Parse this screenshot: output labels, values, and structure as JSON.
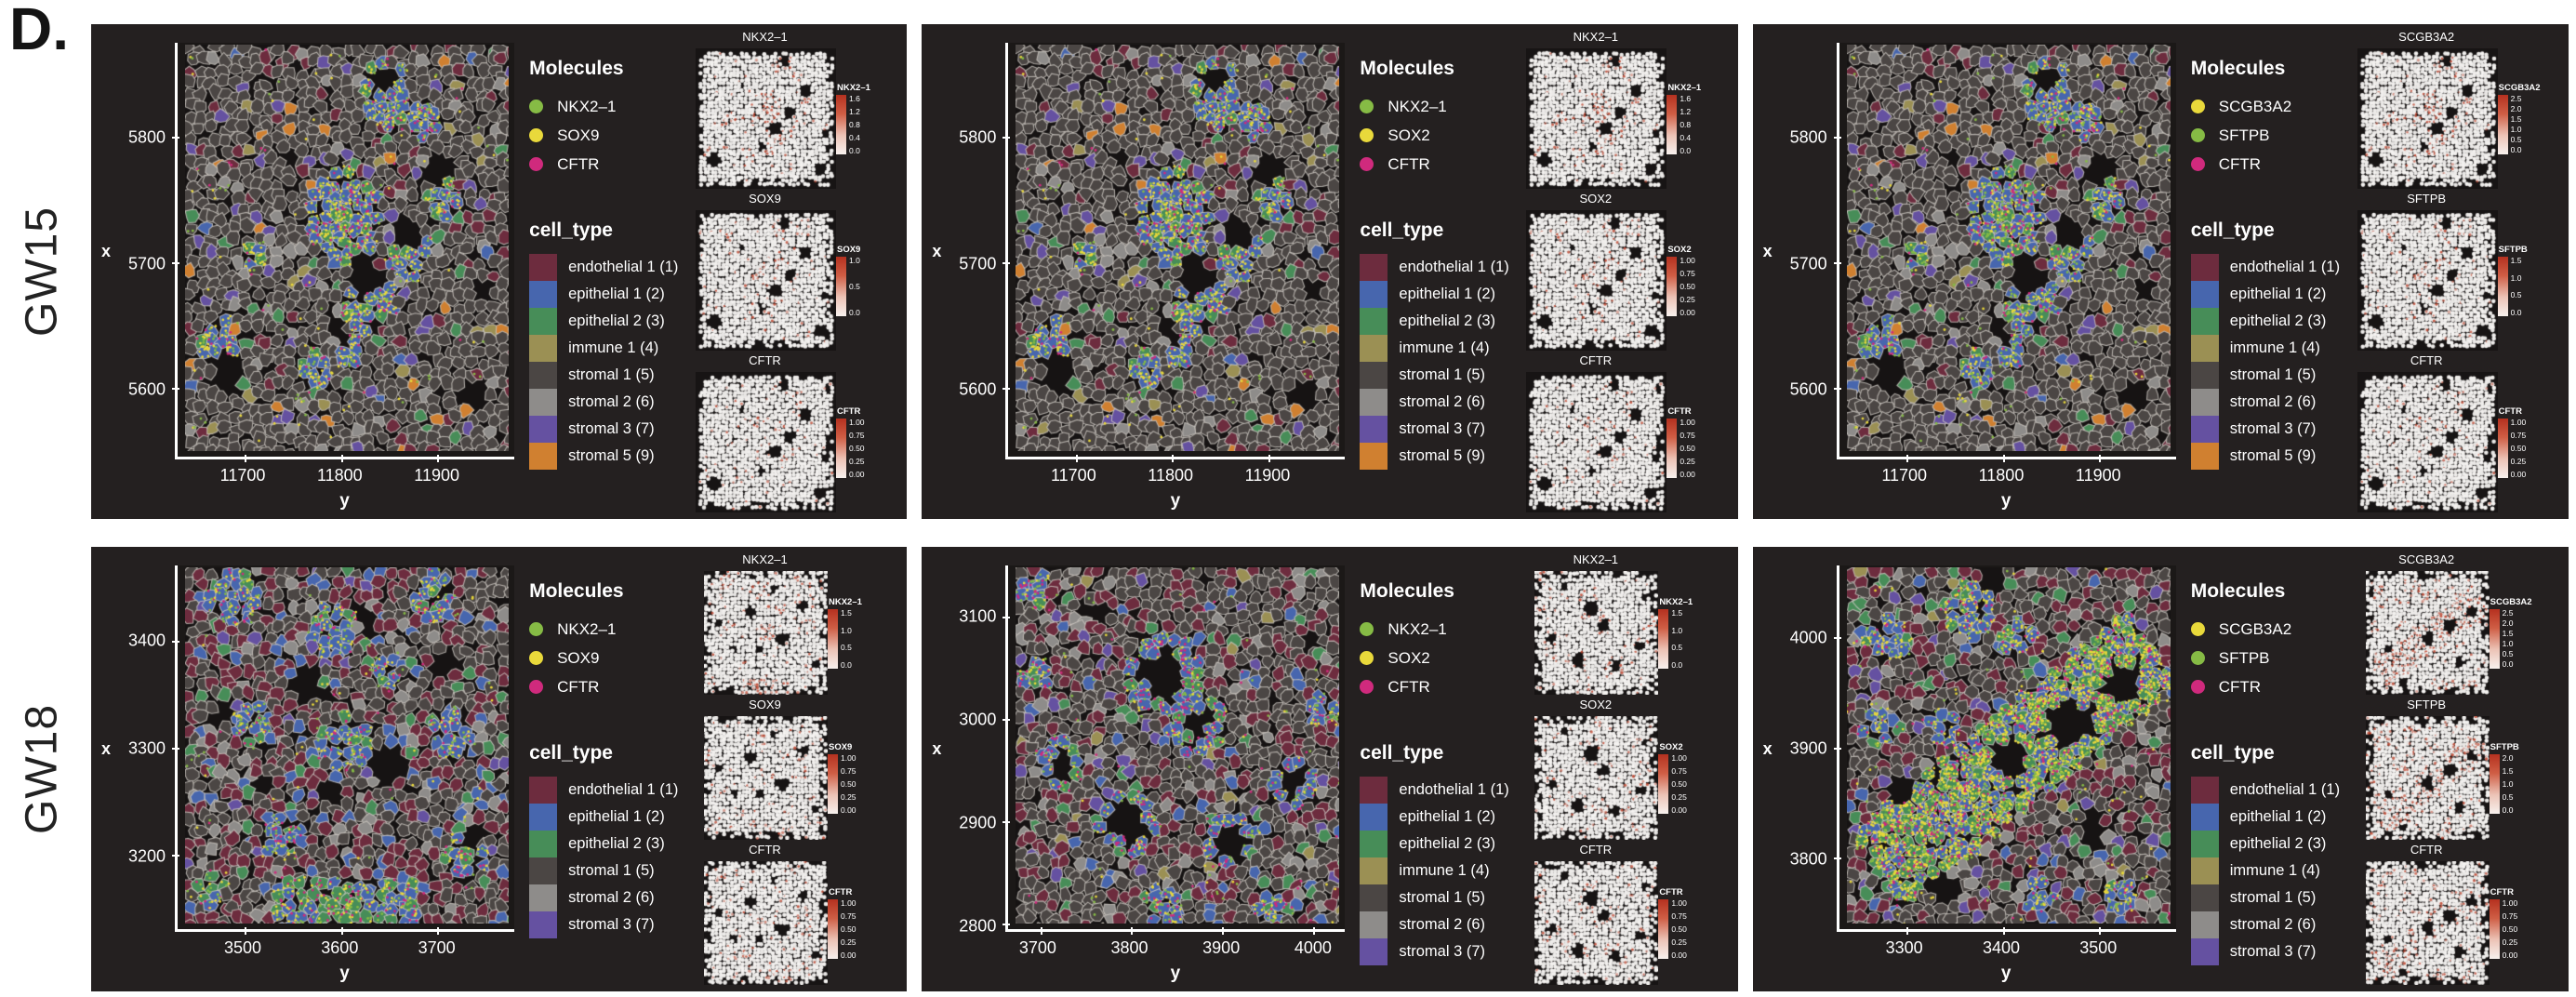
{
  "figure_label": "D.",
  "rows": [
    {
      "label": "GW15",
      "panels": [
        0,
        1,
        2
      ]
    },
    {
      "label": "GW18",
      "panels": [
        3,
        4,
        5
      ]
    }
  ],
  "colors": {
    "panel_background": "#242020",
    "axis": "#ffffff",
    "expression_low": "#f7f1ee",
    "expression_high": "#b5311f"
  },
  "chart_data": [
    {
      "type": "scatter",
      "row": "GW15",
      "xlabel": "y",
      "ylabel": "x",
      "xlim": [
        11630,
        11980
      ],
      "xticks": [
        11700,
        11800,
        11900
      ],
      "ylim": [
        5545,
        5875
      ],
      "yticks": [
        5800,
        5700,
        5600
      ],
      "legend_molecules_title": "Molecules",
      "molecules": [
        {
          "name": "NKX2–1",
          "color": "#86bb45"
        },
        {
          "name": "SOX9",
          "color": "#e9d93b"
        },
        {
          "name": "CFTR",
          "color": "#d02a7d"
        }
      ],
      "legend_cell_type_title": "cell_type",
      "cell_types": [
        {
          "name": "endothelial 1 (1)",
          "color": "#6d2c3e"
        },
        {
          "name": "epithelial 1 (2)",
          "color": "#4766ae"
        },
        {
          "name": "epithelial 2 (3)",
          "color": "#478d58"
        },
        {
          "name": "immune 1 (4)",
          "color": "#9b9054"
        },
        {
          "name": "stromal 1 (5)",
          "color": "#4b4644"
        },
        {
          "name": "stromal 2 (6)",
          "color": "#8e8c8a"
        },
        {
          "name": "stromal 3 (7)",
          "color": "#6551a1"
        },
        {
          "name": "stromal 5 (9)",
          "color": "#d08030"
        }
      ],
      "insets": [
        {
          "title": "NKX2–1",
          "colorbar_title": "NKX2–1",
          "colorbar_ticks": [
            "1.6",
            "1.2",
            "0.8",
            "0.4",
            "0.0"
          ]
        },
        {
          "title": "SOX9",
          "colorbar_title": "SOX9",
          "colorbar_ticks": [
            "1.0",
            "0.5",
            "0.0"
          ]
        },
        {
          "title": "CFTR",
          "colorbar_title": "CFTR",
          "colorbar_ticks": [
            "1.00",
            "0.75",
            "0.50",
            "0.25",
            "0.00"
          ]
        }
      ]
    },
    {
      "type": "scatter",
      "row": "GW15",
      "xlabel": "y",
      "ylabel": "x",
      "xlim": [
        11630,
        11980
      ],
      "xticks": [
        11700,
        11800,
        11900
      ],
      "ylim": [
        5545,
        5875
      ],
      "yticks": [
        5800,
        5700,
        5600
      ],
      "legend_molecules_title": "Molecules",
      "molecules": [
        {
          "name": "NKX2–1",
          "color": "#86bb45"
        },
        {
          "name": "SOX2",
          "color": "#e9d93b"
        },
        {
          "name": "CFTR",
          "color": "#d02a7d"
        }
      ],
      "legend_cell_type_title": "cell_type",
      "cell_types": [
        {
          "name": "endothelial 1 (1)",
          "color": "#6d2c3e"
        },
        {
          "name": "epithelial 1 (2)",
          "color": "#4766ae"
        },
        {
          "name": "epithelial 2 (3)",
          "color": "#478d58"
        },
        {
          "name": "immune 1 (4)",
          "color": "#9b9054"
        },
        {
          "name": "stromal 1 (5)",
          "color": "#4b4644"
        },
        {
          "name": "stromal 2 (6)",
          "color": "#8e8c8a"
        },
        {
          "name": "stromal 3 (7)",
          "color": "#6551a1"
        },
        {
          "name": "stromal 5 (9)",
          "color": "#d08030"
        }
      ],
      "insets": [
        {
          "title": "NKX2–1",
          "colorbar_title": "NKX2–1",
          "colorbar_ticks": [
            "1.6",
            "1.2",
            "0.8",
            "0.4",
            "0.0"
          ]
        },
        {
          "title": "SOX2",
          "colorbar_title": "SOX2",
          "colorbar_ticks": [
            "1.00",
            "0.75",
            "0.50",
            "0.25",
            "0.00"
          ]
        },
        {
          "title": "CFTR",
          "colorbar_title": "CFTR",
          "colorbar_ticks": [
            "1.00",
            "0.75",
            "0.50",
            "0.25",
            "0.00"
          ]
        }
      ]
    },
    {
      "type": "scatter",
      "row": "GW15",
      "xlabel": "y",
      "ylabel": "x",
      "xlim": [
        11630,
        11980
      ],
      "xticks": [
        11700,
        11800,
        11900
      ],
      "ylim": [
        5545,
        5875
      ],
      "yticks": [
        5800,
        5700,
        5600
      ],
      "legend_molecules_title": "Molecules",
      "molecules": [
        {
          "name": "SCGB3A2",
          "color": "#e9d93b"
        },
        {
          "name": "SFTPB",
          "color": "#86bb45"
        },
        {
          "name": "CFTR",
          "color": "#d02a7d"
        }
      ],
      "legend_cell_type_title": "cell_type",
      "cell_types": [
        {
          "name": "endothelial 1 (1)",
          "color": "#6d2c3e"
        },
        {
          "name": "epithelial 1 (2)",
          "color": "#4766ae"
        },
        {
          "name": "epithelial 2 (3)",
          "color": "#478d58"
        },
        {
          "name": "immune 1 (4)",
          "color": "#9b9054"
        },
        {
          "name": "stromal 1 (5)",
          "color": "#4b4644"
        },
        {
          "name": "stromal 2 (6)",
          "color": "#8e8c8a"
        },
        {
          "name": "stromal 3 (7)",
          "color": "#6551a1"
        },
        {
          "name": "stromal 5 (9)",
          "color": "#d08030"
        }
      ],
      "insets": [
        {
          "title": "SCGB3A2",
          "colorbar_title": "SCGB3A2",
          "colorbar_ticks": [
            "2.5",
            "2.0",
            "1.5",
            "1.0",
            "0.5",
            "0.0"
          ]
        },
        {
          "title": "SFTPB",
          "colorbar_title": "SFTPB",
          "colorbar_ticks": [
            "1.5",
            "1.0",
            "0.5",
            "0.0"
          ]
        },
        {
          "title": "CFTR",
          "colorbar_title": "CFTR",
          "colorbar_ticks": [
            "1.00",
            "0.75",
            "0.50",
            "0.25",
            "0.00"
          ]
        }
      ]
    },
    {
      "type": "scatter",
      "row": "GW18",
      "xlabel": "y",
      "ylabel": "x",
      "xlim": [
        3430,
        3780
      ],
      "xticks": [
        3500,
        3600,
        3700
      ],
      "ylim": [
        3130,
        3470
      ],
      "yticks": [
        3400,
        3300,
        3200
      ],
      "legend_molecules_title": "Molecules",
      "molecules": [
        {
          "name": "NKX2–1",
          "color": "#86bb45"
        },
        {
          "name": "SOX9",
          "color": "#e9d93b"
        },
        {
          "name": "CFTR",
          "color": "#d02a7d"
        }
      ],
      "legend_cell_type_title": "cell_type",
      "cell_types": [
        {
          "name": "endothelial 1 (1)",
          "color": "#6d2c3e"
        },
        {
          "name": "epithelial 1 (2)",
          "color": "#4766ae"
        },
        {
          "name": "epithelial 2 (3)",
          "color": "#478d58"
        },
        {
          "name": "stromal 1 (5)",
          "color": "#4b4644"
        },
        {
          "name": "stromal 2 (6)",
          "color": "#8e8c8a"
        },
        {
          "name": "stromal 3 (7)",
          "color": "#6551a1"
        }
      ],
      "insets": [
        {
          "title": "NKX2–1",
          "colorbar_title": "NKX2–1",
          "colorbar_ticks": [
            "1.5",
            "1.0",
            "0.5",
            "0.0"
          ]
        },
        {
          "title": "SOX9",
          "colorbar_title": "SOX9",
          "colorbar_ticks": [
            "1.00",
            "0.75",
            "0.50",
            "0.25",
            "0.00"
          ]
        },
        {
          "title": "CFTR",
          "colorbar_title": "CFTR",
          "colorbar_ticks": [
            "1.00",
            "0.75",
            "0.50",
            "0.25",
            "0.00"
          ]
        }
      ]
    },
    {
      "type": "scatter",
      "row": "GW18",
      "xlabel": "y",
      "ylabel": "x",
      "xlim": [
        3665,
        4035
      ],
      "xticks": [
        3700,
        3800,
        3900,
        4000
      ],
      "ylim": [
        2795,
        3150
      ],
      "yticks": [
        3100,
        3000,
        2900,
        2800
      ],
      "legend_molecules_title": "Molecules",
      "molecules": [
        {
          "name": "NKX2–1",
          "color": "#86bb45"
        },
        {
          "name": "SOX2",
          "color": "#e9d93b"
        },
        {
          "name": "CFTR",
          "color": "#d02a7d"
        }
      ],
      "legend_cell_type_title": "cell_type",
      "cell_types": [
        {
          "name": "endothelial 1 (1)",
          "color": "#6d2c3e"
        },
        {
          "name": "epithelial 1 (2)",
          "color": "#4766ae"
        },
        {
          "name": "epithelial 2 (3)",
          "color": "#478d58"
        },
        {
          "name": "immune 1 (4)",
          "color": "#9b9054"
        },
        {
          "name": "stromal 1 (5)",
          "color": "#4b4644"
        },
        {
          "name": "stromal 2 (6)",
          "color": "#8e8c8a"
        },
        {
          "name": "stromal 3 (7)",
          "color": "#6551a1"
        }
      ],
      "insets": [
        {
          "title": "NKX2–1",
          "colorbar_title": "NKX2–1",
          "colorbar_ticks": [
            "1.5",
            "1.0",
            "0.5",
            "0.0"
          ]
        },
        {
          "title": "SOX2",
          "colorbar_title": "SOX2",
          "colorbar_ticks": [
            "1.00",
            "0.75",
            "0.50",
            "0.25",
            "0.00"
          ]
        },
        {
          "title": "CFTR",
          "colorbar_title": "CFTR",
          "colorbar_ticks": [
            "1.00",
            "0.75",
            "0.50",
            "0.25",
            "0.00"
          ]
        }
      ]
    },
    {
      "type": "scatter",
      "row": "GW18",
      "xlabel": "y",
      "ylabel": "x",
      "xlim": [
        3230,
        3580
      ],
      "xticks": [
        3300,
        3400,
        3500
      ],
      "ylim": [
        3735,
        4065
      ],
      "yticks": [
        4000,
        3900,
        3800
      ],
      "legend_molecules_title": "Molecules",
      "molecules": [
        {
          "name": "SCGB3A2",
          "color": "#e9d93b"
        },
        {
          "name": "SFTPB",
          "color": "#86bb45"
        },
        {
          "name": "CFTR",
          "color": "#d02a7d"
        }
      ],
      "legend_cell_type_title": "cell_type",
      "cell_types": [
        {
          "name": "endothelial 1 (1)",
          "color": "#6d2c3e"
        },
        {
          "name": "epithelial 1 (2)",
          "color": "#4766ae"
        },
        {
          "name": "epithelial 2 (3)",
          "color": "#478d58"
        },
        {
          "name": "immune 1 (4)",
          "color": "#9b9054"
        },
        {
          "name": "stromal 1 (5)",
          "color": "#4b4644"
        },
        {
          "name": "stromal 2 (6)",
          "color": "#8e8c8a"
        },
        {
          "name": "stromal 3 (7)",
          "color": "#6551a1"
        }
      ],
      "insets": [
        {
          "title": "SCGB3A2",
          "colorbar_title": "SCGB3A2",
          "colorbar_ticks": [
            "2.5",
            "2.0",
            "1.5",
            "1.0",
            "0.5",
            "0.0"
          ]
        },
        {
          "title": "SFTPB",
          "colorbar_title": "SFTPB",
          "colorbar_ticks": [
            "2.0",
            "1.5",
            "1.0",
            "0.5",
            "0.0"
          ]
        },
        {
          "title": "CFTR",
          "colorbar_title": "CFTR",
          "colorbar_ticks": [
            "1.00",
            "0.75",
            "0.50",
            "0.25",
            "0.00"
          ]
        }
      ]
    }
  ]
}
